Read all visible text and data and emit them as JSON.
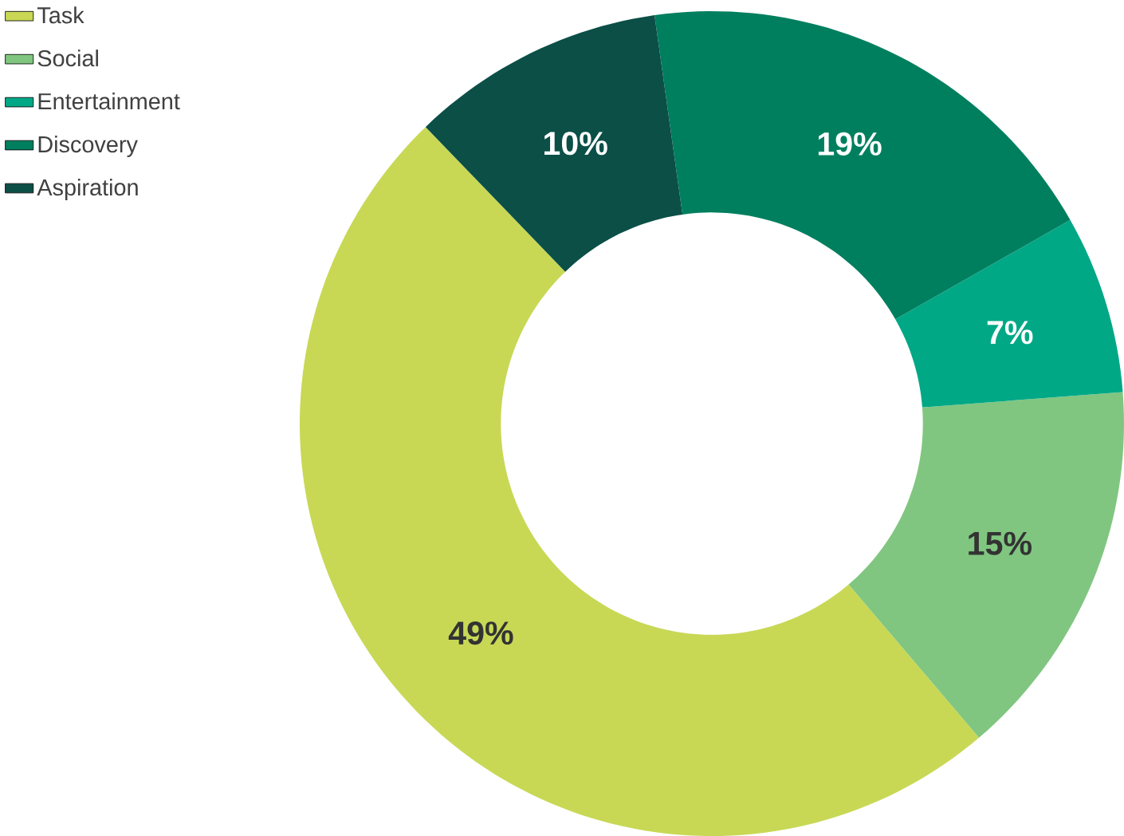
{
  "chart_data": {
    "type": "donut",
    "categories": [
      "Task",
      "Social",
      "Entertainment",
      "Discovery",
      "Aspiration"
    ],
    "values": [
      49,
      15,
      7,
      19,
      10
    ],
    "value_labels": [
      "49%",
      "15%",
      "7%",
      "19%",
      "10%"
    ],
    "colors": [
      "#c8d855",
      "#80c680",
      "#00a886",
      "#007f5f",
      "#0b4f47"
    ],
    "legend": "top left"
  }
}
